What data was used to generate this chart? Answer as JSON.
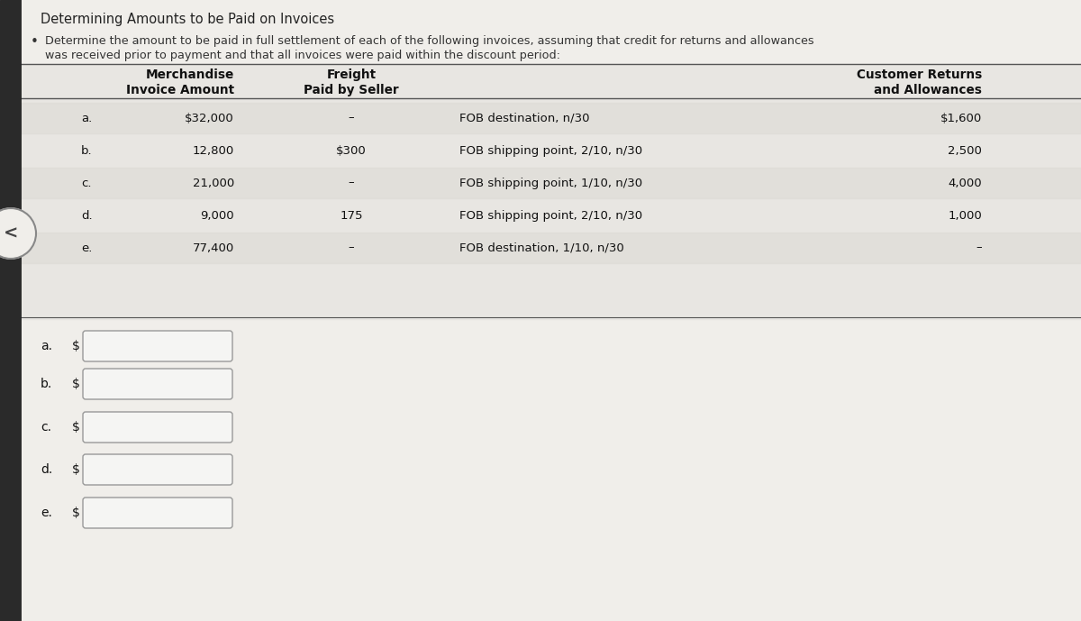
{
  "title": "Determining Amounts to be Paid on Invoices",
  "subtitle_line1": "Determine the amount to be paid in full settlement of each of the following invoices, assuming that credit for returns and allowances",
  "subtitle_line2": "was received prior to payment and that all invoices were paid within the discount period:",
  "rows": [
    {
      "label": "a.",
      "invoice": "$32,000",
      "freight": "–",
      "terms": "FOB destination, n/30",
      "returns": "$1,600"
    },
    {
      "label": "b.",
      "invoice": "12,800",
      "freight": "$300",
      "terms": "FOB shipping point, 2/10, n/30",
      "returns": "2,500"
    },
    {
      "label": "c.",
      "invoice": "21,000",
      "freight": "–",
      "terms": "FOB shipping point, 1/10, n/30",
      "returns": "4,000"
    },
    {
      "label": "d.",
      "invoice": "9,000",
      "freight": "175",
      "terms": "FOB shipping point, 2/10, n/30",
      "returns": "1,000"
    },
    {
      "label": "e.",
      "invoice": "77,400",
      "freight": "–",
      "terms": "FOB destination, 1/10, n/30",
      "returns": "–"
    }
  ],
  "answer_labels": [
    "a.",
    "b.",
    "c.",
    "d.",
    "e."
  ],
  "bg_color": "#d9d6d0",
  "table_bg": "#e8e6e2",
  "white_area": "#f0eeea",
  "left_stripe_color": "#2a2a2a",
  "input_box_color": "#f5f5f3",
  "input_box_border": "#999999",
  "header_line_color": "#555555",
  "font_size_title": 10.5,
  "font_size_subtitle": 9.2,
  "font_size_table": 9.5,
  "font_size_header": 9.8
}
